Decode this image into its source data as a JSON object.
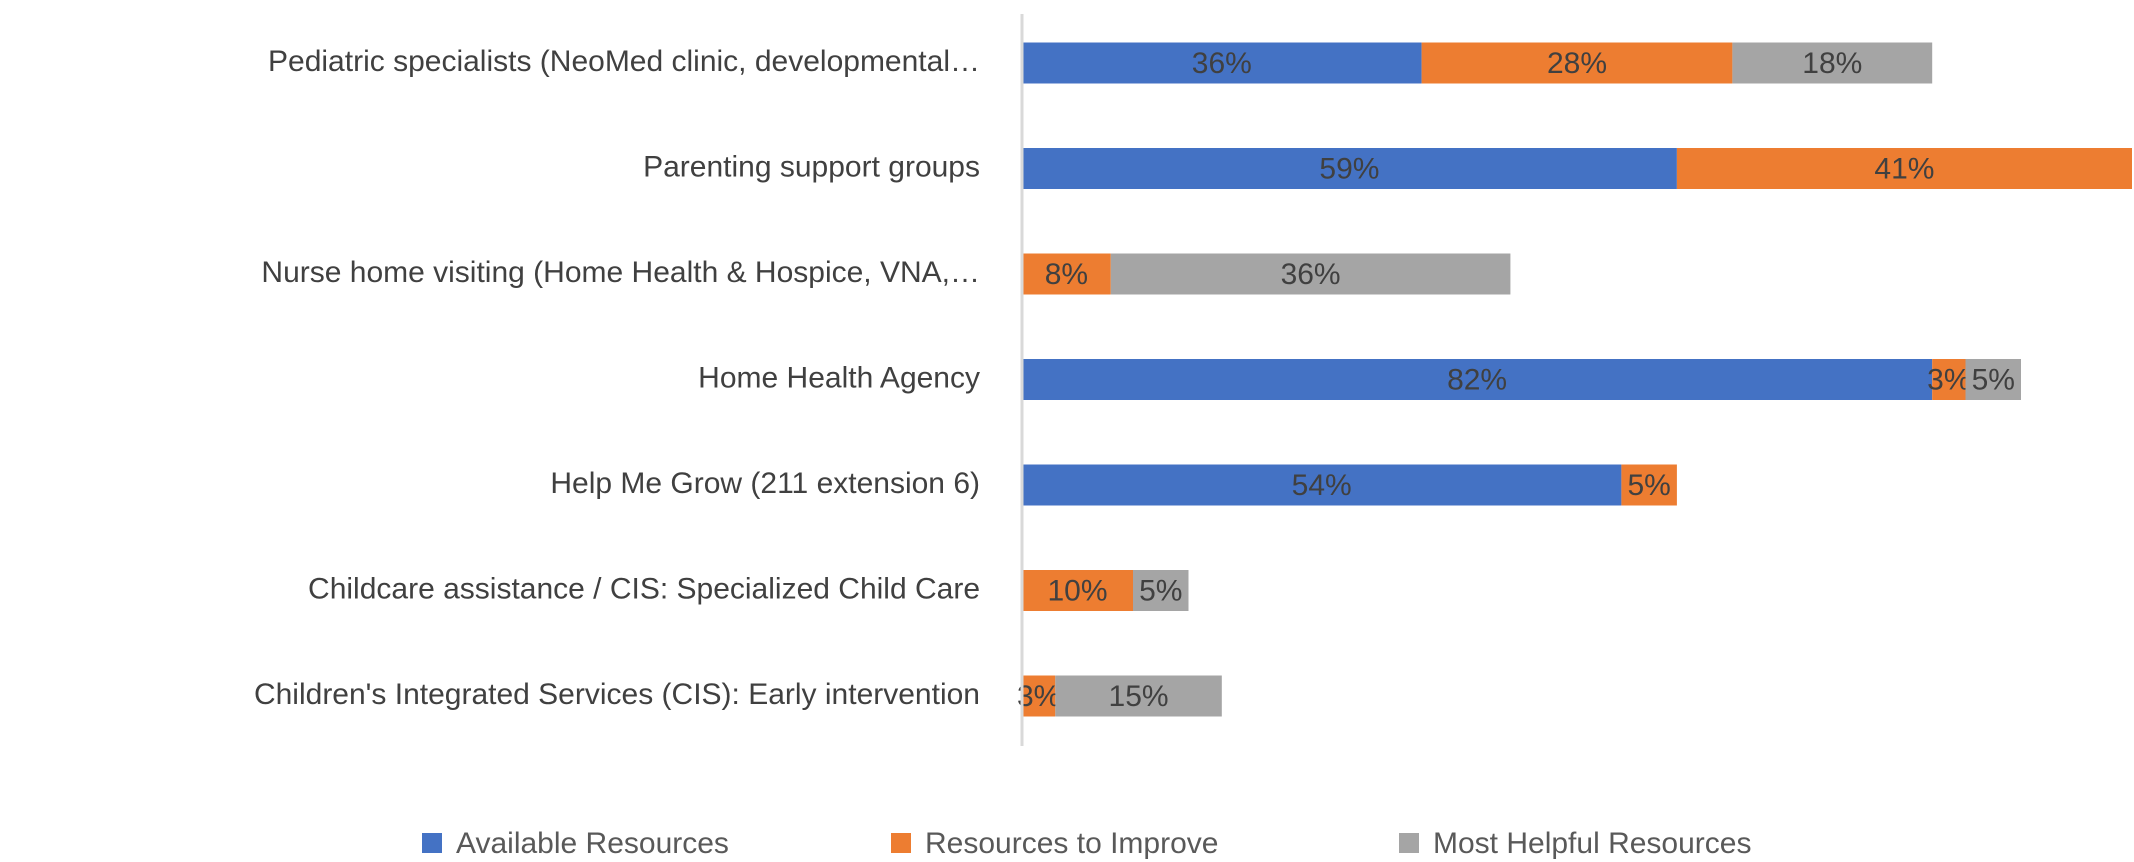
{
  "chart_data": {
    "type": "stacked-bar-horizontal",
    "categories": [
      "Pediatric specialists (NeoMed clinic, developmental…",
      "Parenting support groups",
      "Nurse home visiting (Home Health & Hospice, VNA,…",
      "Home Health Agency",
      "Help Me Grow (211 extension 6)",
      "Childcare assistance / CIS: Specialized Child Care",
      "Children's Integrated Services (CIS): Early intervention"
    ],
    "series": [
      {
        "name": "Available Resources",
        "color": "#4472c4",
        "values": [
          36,
          59,
          null,
          82,
          54,
          null,
          null
        ],
        "value_labels": [
          "36%",
          "59%",
          null,
          "82%",
          "54%",
          null,
          null
        ]
      },
      {
        "name": "Resources to Improve",
        "color": "#ed7d31",
        "values": [
          28,
          41,
          8,
          3,
          5,
          10,
          3
        ],
        "value_labels": [
          "28%",
          "41%",
          "8%",
          "3%",
          "5%",
          "10%",
          "3%"
        ]
      },
      {
        "name": "Most Helpful Resources",
        "color": "#a5a5a5",
        "values": [
          18,
          null,
          36,
          5,
          null,
          5,
          15
        ],
        "value_labels": [
          "18%",
          null,
          "36%",
          "5%",
          null,
          "5%",
          "15%"
        ]
      }
    ],
    "xlim": [
      0,
      100
    ],
    "legend": "bottom"
  }
}
